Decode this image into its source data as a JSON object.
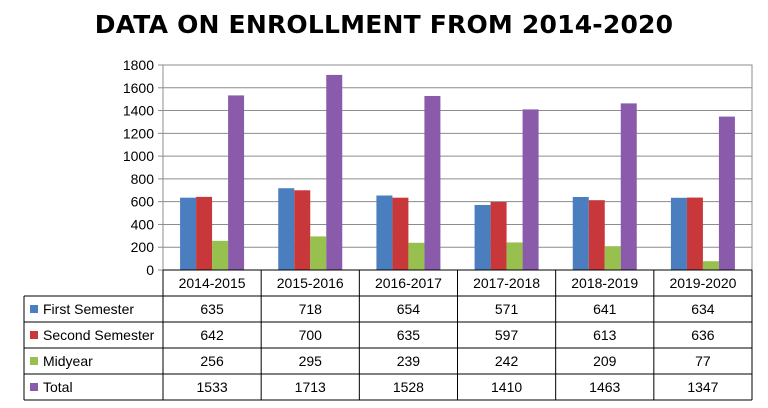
{
  "chart_data": {
    "type": "bar",
    "title": "DATA ON ENROLLMENT FROM 2014-2020",
    "categories": [
      "2014-2015",
      "2015-2016",
      "2016-2017",
      "2017-2018",
      "2018-2019",
      "2019-2020"
    ],
    "series": [
      {
        "name": "First Semester",
        "color": "#4A7EBF",
        "values": [
          635,
          718,
          654,
          571,
          641,
          634
        ]
      },
      {
        "name": "Second Semester",
        "color": "#C8383A",
        "values": [
          642,
          700,
          635,
          597,
          613,
          636
        ]
      },
      {
        "name": "Midyear",
        "color": "#98C04E",
        "values": [
          256,
          295,
          239,
          242,
          209,
          77
        ]
      },
      {
        "name": "Total",
        "color": "#8A5BAA",
        "values": [
          1533,
          1713,
          1528,
          1410,
          1463,
          1347
        ]
      }
    ],
    "ylim": [
      0,
      1800
    ],
    "yticks": [
      0,
      200,
      400,
      600,
      800,
      1000,
      1200,
      1400,
      1600,
      1800
    ],
    "grid": true,
    "legend": "data-table"
  }
}
